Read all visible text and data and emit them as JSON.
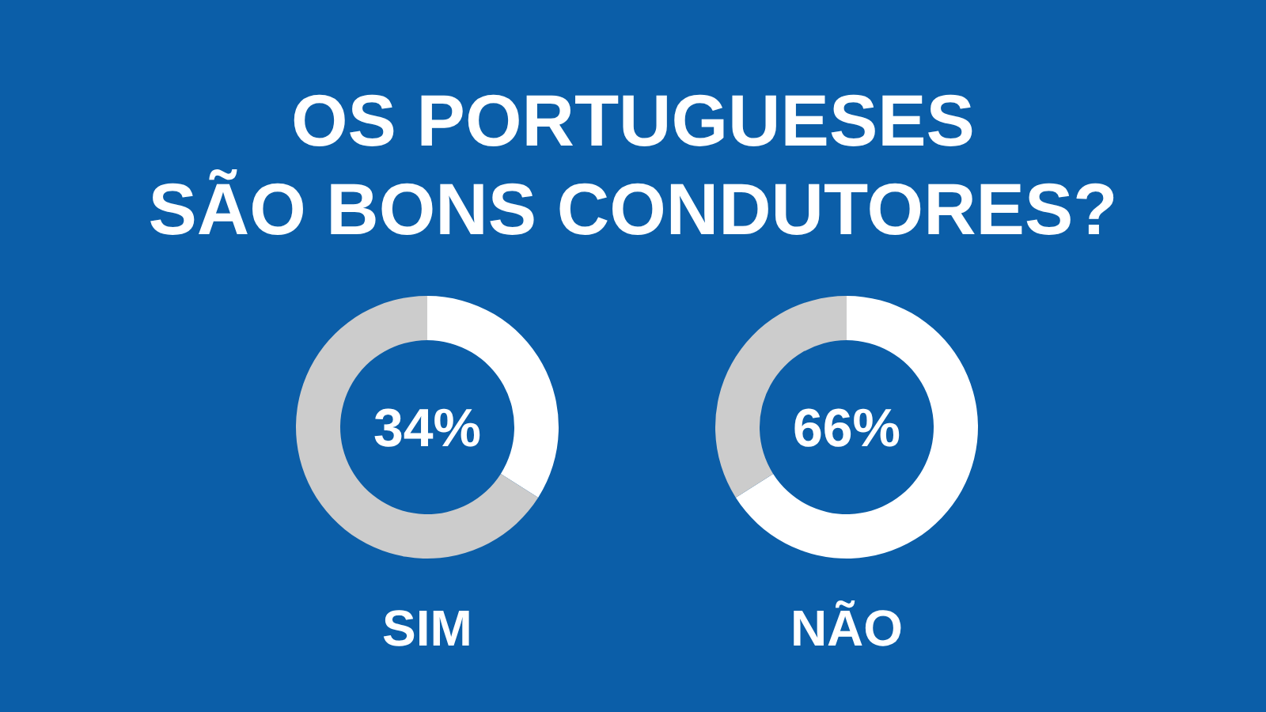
{
  "chart_data": [
    {
      "type": "other",
      "title": "OS PORTUGUESES\nSÃO BONS CONDUTORES?"
    },
    {
      "type": "donut",
      "xlabel": "SIM",
      "categories": [
        null,
        null
      ],
      "values": [
        34,
        66
      ],
      "colors": [
        "#ffffff",
        "#cccccc"
      ],
      "annotations": [
        "34%"
      ]
    },
    {
      "type": "donut",
      "xlabel": "NÃO",
      "categories": [
        null,
        null
      ],
      "values": [
        66,
        34
      ],
      "colors": [
        "#ffffff",
        "#cccccc"
      ],
      "annotations": [
        "66%"
      ]
    }
  ]
}
